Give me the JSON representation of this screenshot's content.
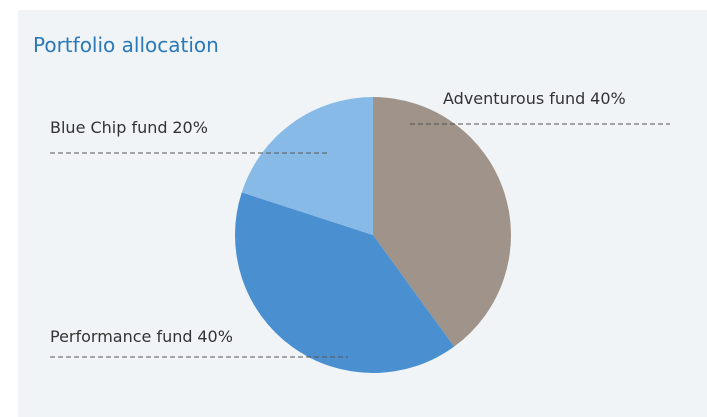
{
  "chart_data": {
    "type": "pie",
    "title": "Portfolio allocation",
    "categories": [
      "Adventurous fund",
      "Performance fund",
      "Blue Chip fund"
    ],
    "values": [
      40,
      40,
      20
    ],
    "value_labels": [
      "40%",
      "40%",
      "20%"
    ],
    "colors": [
      "#a09389",
      "#4a8fd0",
      "#87bae6"
    ]
  }
}
